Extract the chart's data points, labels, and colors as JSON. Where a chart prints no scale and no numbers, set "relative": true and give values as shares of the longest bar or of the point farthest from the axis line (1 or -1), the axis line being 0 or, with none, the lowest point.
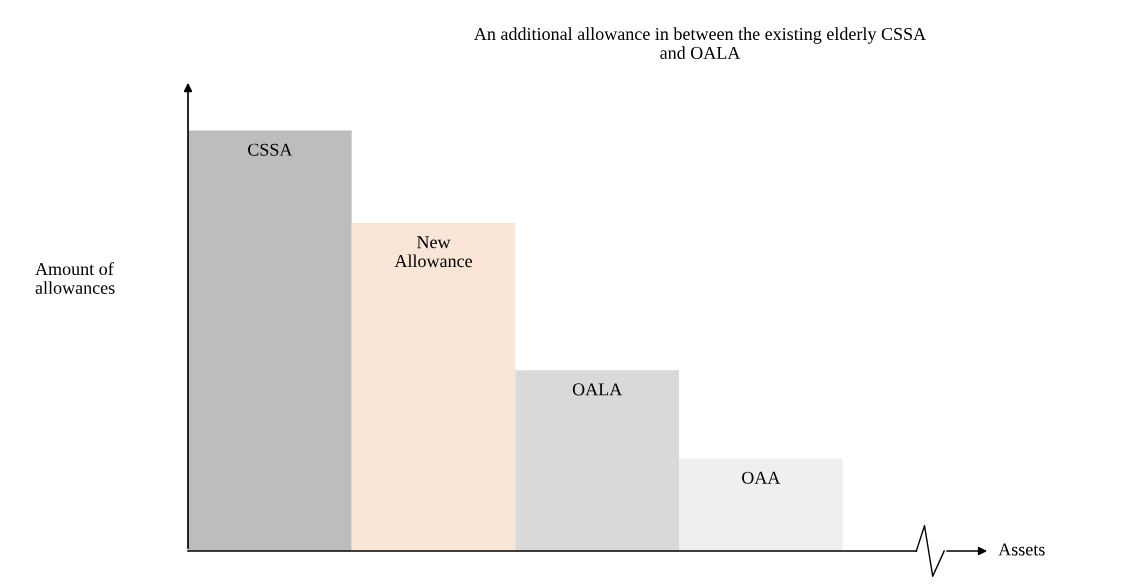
{
  "chart_data": {
    "type": "bar",
    "title": "An additional allowance in between the existing elderly CSSA\nand OALA",
    "xlabel": "Assets",
    "ylabel": "Amount of\nallowances",
    "categories": [
      "CSSA",
      "New\nAllowance",
      "OALA",
      "OAA"
    ],
    "values": [
      1,
      0.78,
      0.43,
      0.22
    ],
    "colors": [
      "#bdbdbd",
      "#fbe5d6",
      "#d9d9d9",
      "#efefef"
    ],
    "relative": true
  }
}
